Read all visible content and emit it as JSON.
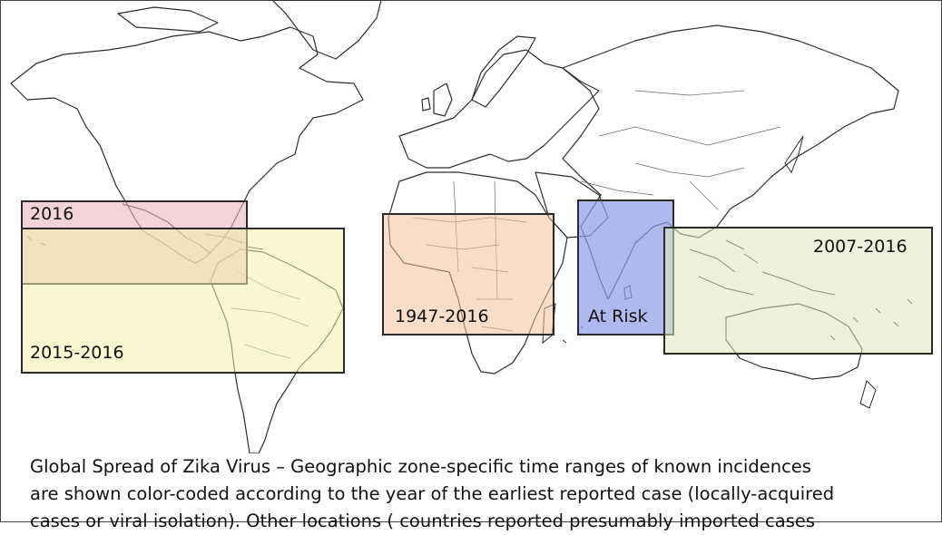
{
  "zones": [
    {
      "id": "americas-2016",
      "label": "2016",
      "color": "#e9b5c2",
      "opacity": 0.6
    },
    {
      "id": "americas-2015-2016",
      "label": "2015-2016",
      "color": "#f2f0a8",
      "opacity": 0.55
    },
    {
      "id": "africa-1947-2016",
      "label": "1947-2016",
      "color": "#eec29e",
      "opacity": 0.55
    },
    {
      "id": "south-asia-at-risk",
      "label": "At Risk",
      "color": "#8f9fe8",
      "opacity": 0.72
    },
    {
      "id": "pacific-2007-2016",
      "label": "2007-2016",
      "color": "#dfeabc",
      "opacity": 0.55
    }
  ],
  "caption": {
    "line1": "Global Spread of Zika Virus – Geographic zone-specific time ranges of known incidences",
    "line2": "are shown color-coded according to the year of the earliest reported case (locally-acquired",
    "line3": "cases or viral isolation). Other locations ( countries reported presumably imported cases"
  }
}
